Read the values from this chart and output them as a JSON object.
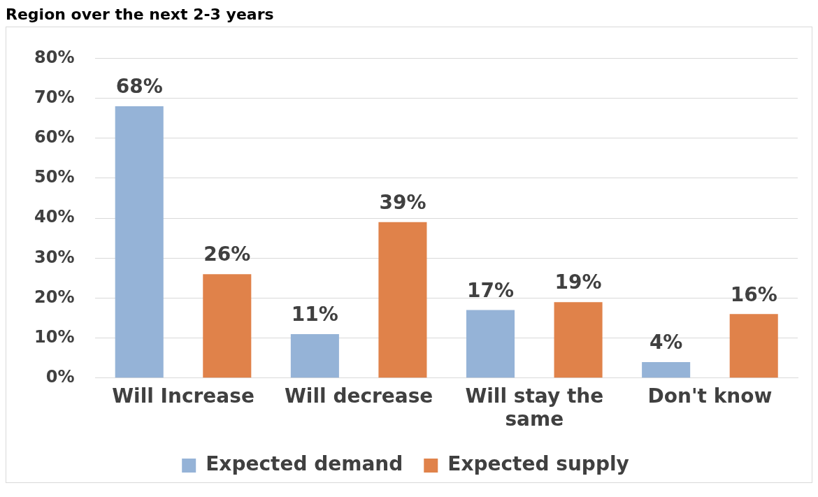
{
  "chart_data": {
    "type": "bar",
    "title": "Region over the next 2-3 years",
    "categories": [
      "Will Increase",
      "Will decrease",
      "Will stay the same",
      "Don't know"
    ],
    "series": [
      {
        "name": "Expected demand",
        "color": "#95b3d7",
        "values": [
          68,
          11,
          17,
          4
        ],
        "value_labels": [
          "68%",
          "11%",
          "17%",
          "4%"
        ]
      },
      {
        "name": "Expected supply",
        "color": "#e0824a",
        "values": [
          26,
          39,
          19,
          16
        ],
        "value_labels": [
          "26%",
          "39%",
          "19%",
          "16%"
        ]
      }
    ],
    "ylim": [
      0,
      80
    ],
    "yticks": [
      {
        "value": 0,
        "label": "0%"
      },
      {
        "value": 10,
        "label": "10%"
      },
      {
        "value": 20,
        "label": "20%"
      },
      {
        "value": 30,
        "label": "30%"
      },
      {
        "value": 40,
        "label": "40%"
      },
      {
        "value": 50,
        "label": "50%"
      },
      {
        "value": 60,
        "label": "60%"
      },
      {
        "value": 70,
        "label": "70%"
      },
      {
        "value": 80,
        "label": "80%"
      }
    ],
    "grid": "y",
    "legend": "bottom"
  }
}
